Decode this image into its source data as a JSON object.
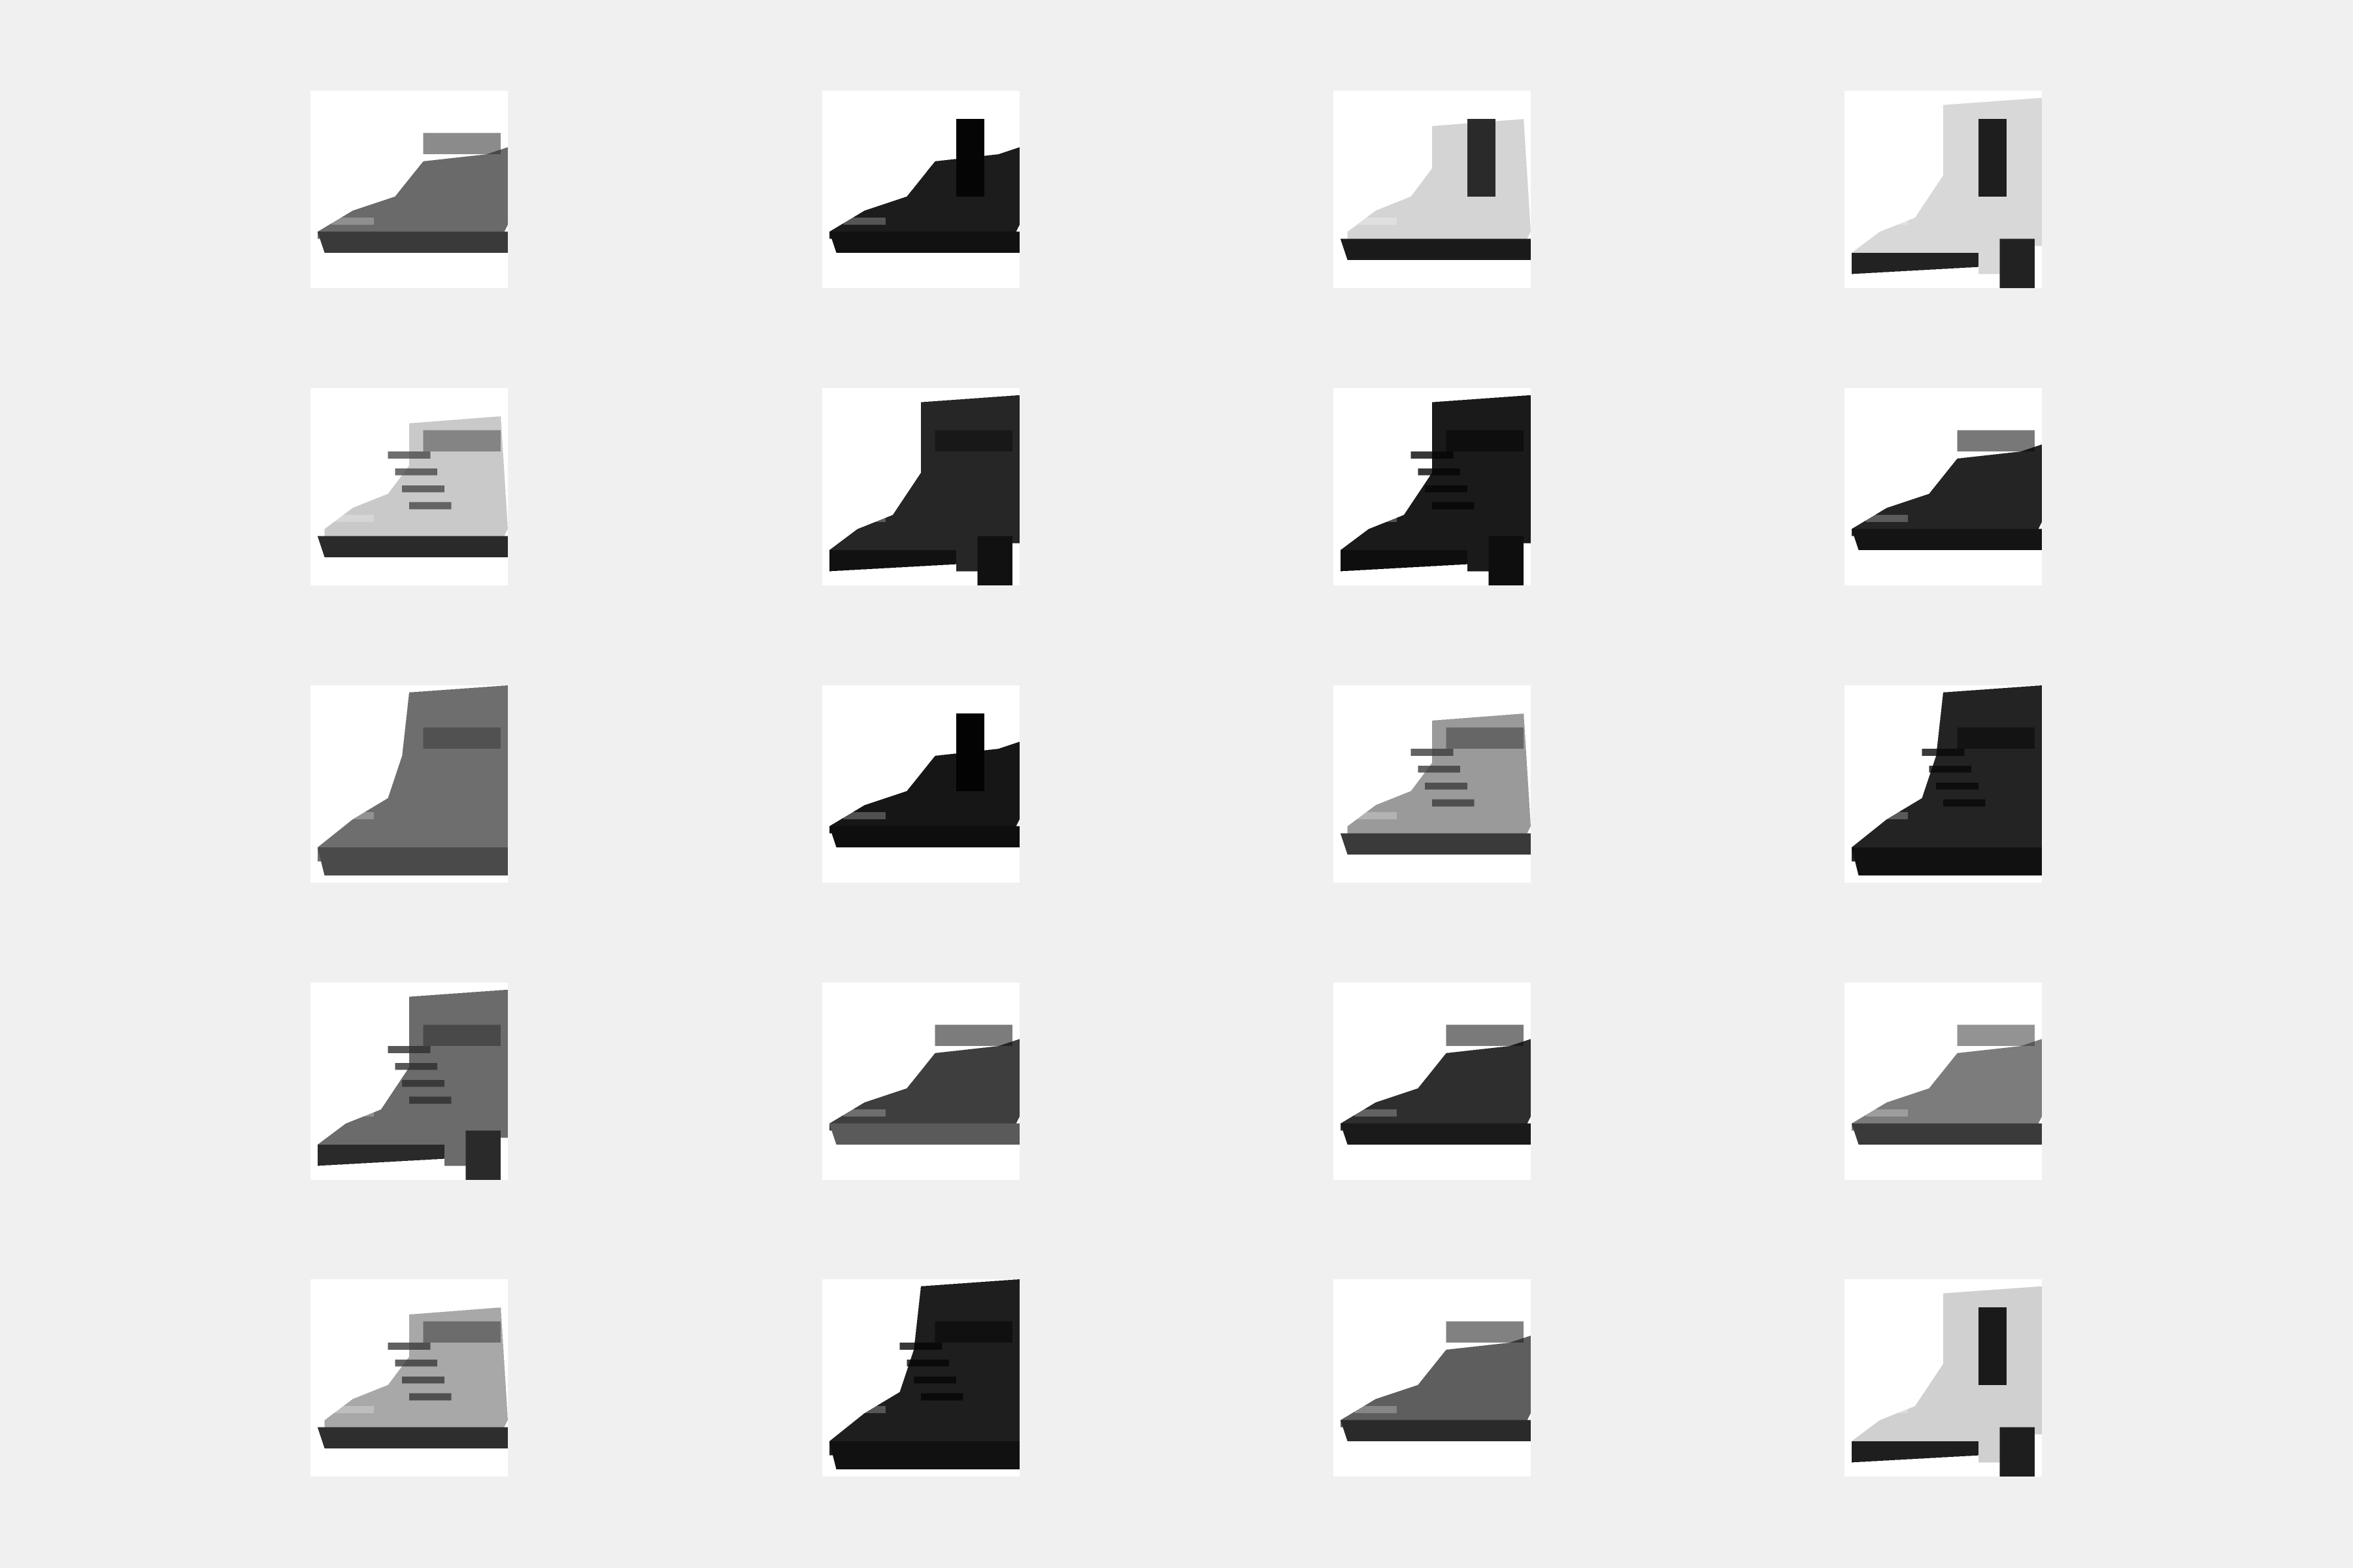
{
  "figure": {
    "background": "#f0f0f0",
    "tile_background": "#ffffff",
    "rows": 5,
    "columns": 4
  },
  "images": [
    {
      "subject": "boot-icon",
      "style": "ankle-boot-cuffed",
      "tone": "#6a6a6a",
      "dark": "#2b2b2b",
      "sole": "#3a3a3a"
    },
    {
      "subject": "boot-icon",
      "style": "chelsea-boot",
      "tone": "#1c1c1c",
      "dark": "#050505",
      "sole": "#111111"
    },
    {
      "subject": "boot-icon",
      "style": "chelsea-boot-light",
      "tone": "#d4d4d4",
      "dark": "#2a2a2a",
      "sole": "#1a1a1a"
    },
    {
      "subject": "boot-icon",
      "style": "heeled-chelsea-light",
      "tone": "#d8d8d8",
      "dark": "#1e1e1e",
      "sole": "#222222"
    },
    {
      "subject": "boot-icon",
      "style": "lace-up-light",
      "tone": "#c9c9c9",
      "dark": "#4a4a4a",
      "sole": "#2a2a2a"
    },
    {
      "subject": "boot-icon",
      "style": "heeled-ankle-boot",
      "tone": "#262626",
      "dark": "#0d0d0d",
      "sole": "#111111"
    },
    {
      "subject": "boot-icon",
      "style": "heeled-lace-up",
      "tone": "#1a1a1a",
      "dark": "#050505",
      "sole": "#0e0e0e"
    },
    {
      "subject": "boot-icon",
      "style": "low-shoe",
      "tone": "#242424",
      "dark": "#0a0a0a",
      "sole": "#141414"
    },
    {
      "subject": "boot-icon",
      "style": "tall-boot-grey",
      "tone": "#6e6e6e",
      "dark": "#3a3a3a",
      "sole": "#4a4a4a"
    },
    {
      "subject": "boot-icon",
      "style": "chelsea-boot",
      "tone": "#161616",
      "dark": "#030303",
      "sole": "#0e0e0e"
    },
    {
      "subject": "boot-icon",
      "style": "lace-up-grey",
      "tone": "#9a9a9a",
      "dark": "#3c3c3c",
      "sole": "#3a3a3a"
    },
    {
      "subject": "boot-icon",
      "style": "buckle-boot-dark",
      "tone": "#232323",
      "dark": "#080808",
      "sole": "#111111"
    },
    {
      "subject": "boot-icon",
      "style": "heeled-lace-up-grey",
      "tone": "#6b6b6b",
      "dark": "#2e2e2e",
      "sole": "#2a2a2a"
    },
    {
      "subject": "boot-icon",
      "style": "lug-sole-boot",
      "tone": "#3e3e3e",
      "dark": "#111111",
      "sole": "#5a5a5a"
    },
    {
      "subject": "boot-icon",
      "style": "ankle-boot-dark",
      "tone": "#2e2e2e",
      "dark": "#0c0c0c",
      "sole": "#1a1a1a"
    },
    {
      "subject": "boot-icon",
      "style": "ankle-boot-grey",
      "tone": "#7c7c7c",
      "dark": "#3a3a3a",
      "sole": "#3a3a3a"
    },
    {
      "subject": "boot-icon",
      "style": "strap-boot-light",
      "tone": "#a8a8a8",
      "dark": "#3a3a3a",
      "sole": "#2e2e2e"
    },
    {
      "subject": "boot-icon",
      "style": "buckle-boot-tall",
      "tone": "#1e1e1e",
      "dark": "#050505",
      "sole": "#111111"
    },
    {
      "subject": "boot-icon",
      "style": "work-boot-grey",
      "tone": "#5e5e5e",
      "dark": "#1a1a1a",
      "sole": "#2a2a2a"
    },
    {
      "subject": "boot-icon",
      "style": "heeled-chelsea-light",
      "tone": "#d0d0d0",
      "dark": "#1a1a1a",
      "sole": "#1e1e1e"
    }
  ]
}
